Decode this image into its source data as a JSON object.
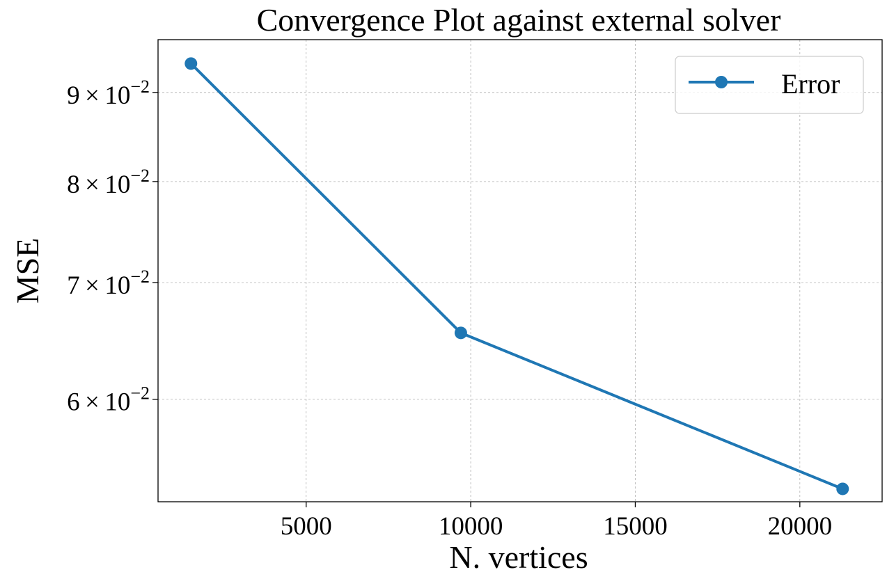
{
  "chart_data": {
    "type": "line",
    "title": "Convergence Plot against external solver",
    "xlabel": "N. vertices",
    "ylabel": "MSE",
    "xlim": [
      500,
      22500
    ],
    "ylim": [
      0.0524,
      0.0965
    ],
    "yscale": "log",
    "grid": true,
    "legend_position": "top-right",
    "x_ticks": [
      {
        "value": 5000,
        "label": "5000"
      },
      {
        "value": 10000,
        "label": "10000"
      },
      {
        "value": 15000,
        "label": "15000"
      },
      {
        "value": 20000,
        "label": "20000"
      }
    ],
    "y_ticks": [
      {
        "value": 0.06,
        "mantissa": "6",
        "base": "10",
        "exponent": "−2"
      },
      {
        "value": 0.07,
        "mantissa": "7",
        "base": "10",
        "exponent": "−2"
      },
      {
        "value": 0.08,
        "mantissa": "8",
        "base": "10",
        "exponent": "−2"
      },
      {
        "value": 0.09,
        "mantissa": "9",
        "base": "10",
        "exponent": "−2"
      }
    ],
    "series": [
      {
        "name": "Error",
        "color": "#1f77b4",
        "x": [
          1500,
          9700,
          21300
        ],
        "y": [
          0.0935,
          0.0655,
          0.0533
        ]
      }
    ]
  }
}
